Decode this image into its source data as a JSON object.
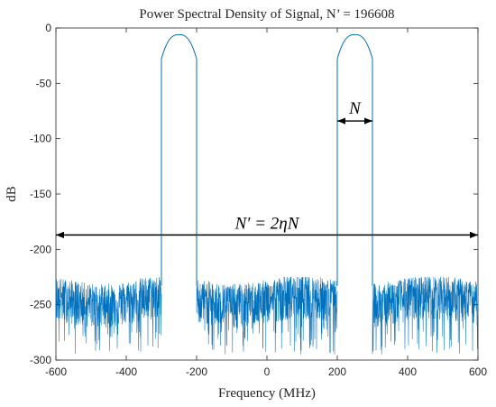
{
  "chart_data": {
    "type": "line",
    "title": "Power Spectral Density of Signal, N’ = 196608",
    "xlabel": "Frequency (MHz)",
    "ylabel": "dB",
    "xlim": [
      -600,
      600
    ],
    "ylim": [
      -300,
      0
    ],
    "x_ticks": [
      -600,
      -400,
      -200,
      0,
      200,
      400,
      600
    ],
    "y_ticks": [
      0,
      -50,
      -100,
      -150,
      -200,
      -250,
      -300
    ],
    "x_tick_labels": [
      "-600",
      "-400",
      "-200",
      "0",
      "200",
      "400",
      "600"
    ],
    "y_tick_labels": [
      "0",
      "-50",
      "-100",
      "-150",
      "-200",
      "-250",
      "-300"
    ],
    "grid": false,
    "series": [
      {
        "color": "#0072BD",
        "noise_floor_db": {
          "mean": -245,
          "low": -295,
          "high": -225
        },
        "bands": [
          {
            "x_start": -300,
            "x_end": -200,
            "edge_db": -28,
            "peak_db": -6,
            "peak_x": -250
          },
          {
            "x_start": 200,
            "x_end": 300,
            "edge_db": -28,
            "peak_db": -6,
            "peak_x": 250
          }
        ]
      }
    ],
    "annotations": [
      {
        "text": "N",
        "arrow_from": [
          200,
          -84
        ],
        "arrow_to": [
          300,
          -84
        ]
      },
      {
        "text": "N′ = 2ηN",
        "arrow_from": [
          -600,
          -187
        ],
        "arrow_to": [
          600,
          -187
        ]
      }
    ]
  }
}
